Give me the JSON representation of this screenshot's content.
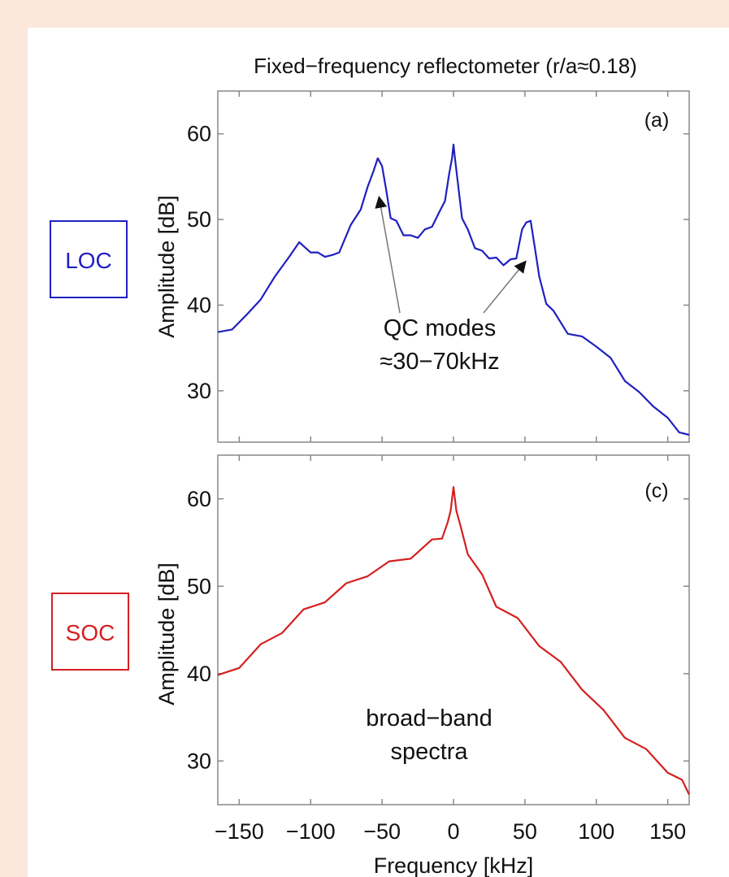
{
  "figure": {
    "title": "Fixed−frequency reflectometer (r/a≈0.18)",
    "colors": {
      "outer_background": "#fbe7dc",
      "figure_background": "#ffffff",
      "loc": "#2020c0",
      "soc": "#d42020",
      "axis": "#888888",
      "text": "#111111"
    }
  },
  "chart_data": [
    {
      "type": "line",
      "panel": "(a)",
      "regime_label": "LOC",
      "ylabel": "Amplitude [dB]",
      "xlim": [
        -165,
        165
      ],
      "ylim": [
        24,
        65
      ],
      "yticks": [
        30,
        40,
        50,
        60
      ],
      "xticks": [
        -150,
        -100,
        -50,
        0,
        50,
        100,
        150
      ],
      "show_xtick_labels": false,
      "grid": false,
      "annotation": {
        "lines": [
          "QC modes",
          "≈30−70kHz"
        ],
        "arrows_to": [
          [
            -52,
            52.5
          ],
          [
            50,
            45
          ]
        ]
      },
      "series": [
        {
          "color": "#2020c0",
          "x": [
            -165,
            -155,
            -145,
            -135,
            -125,
            -115,
            -108,
            -100,
            -95,
            -90,
            -85,
            -80,
            -72,
            -65,
            -60,
            -56,
            -53,
            -50,
            -47,
            -44,
            -40,
            -35,
            -30,
            -25,
            -20,
            -15,
            -10,
            -6,
            -3,
            -1,
            0,
            1,
            3,
            6,
            10,
            15,
            20,
            25,
            30,
            35,
            40,
            44,
            48,
            51,
            54,
            57,
            60,
            65,
            70,
            80,
            90,
            100,
            110,
            120,
            130,
            140,
            150,
            158,
            165
          ],
          "y": [
            36.5,
            37.5,
            38.5,
            41,
            43,
            46,
            47,
            46.5,
            45.8,
            46,
            45.5,
            46.5,
            49,
            51.5,
            53.5,
            56,
            56.8,
            56.6,
            53,
            50.5,
            49.5,
            48.5,
            47.8,
            48.2,
            48.5,
            49.5,
            50.5,
            52.5,
            55,
            57.5,
            58.4,
            57.5,
            54,
            50.5,
            48.5,
            47,
            46,
            45.8,
            45.2,
            45,
            45,
            45.8,
            48.5,
            50,
            49.5,
            47,
            43,
            40.5,
            39,
            37,
            36,
            35.5,
            33.5,
            31.5,
            29.5,
            28.5,
            26.5,
            25.5,
            24.5
          ]
        }
      ]
    },
    {
      "type": "line",
      "panel": "(c)",
      "regime_label": "SOC",
      "ylabel": "Amplitude [dB]",
      "xlabel": "Frequency [kHz]",
      "xlim": [
        -165,
        165
      ],
      "ylim": [
        25,
        65
      ],
      "yticks": [
        30,
        40,
        50,
        60
      ],
      "xticks": [
        -150,
        -100,
        -50,
        0,
        50,
        100,
        150
      ],
      "xticklabels": [
        "−150",
        "−100",
        "−50",
        "0",
        "50",
        "100",
        "150"
      ],
      "show_xtick_labels": true,
      "grid": false,
      "annotation": {
        "lines": [
          "broad−band",
          "spectra"
        ]
      },
      "series": [
        {
          "color": "#d42020",
          "x": [
            -165,
            -150,
            -135,
            -120,
            -105,
            -90,
            -75,
            -60,
            -45,
            -30,
            -15,
            -8,
            -4,
            -2,
            0,
            2,
            5,
            10,
            20,
            30,
            45,
            60,
            75,
            90,
            105,
            120,
            135,
            150,
            160,
            165
          ],
          "y": [
            39.5,
            41,
            43,
            45,
            47,
            48.5,
            50,
            51.5,
            52.5,
            53.5,
            55,
            55.8,
            57,
            59,
            61,
            59,
            56.5,
            54,
            51,
            48,
            46,
            43.5,
            41,
            38.5,
            35.5,
            33,
            31,
            29,
            27.5,
            26.5
          ]
        }
      ]
    }
  ]
}
